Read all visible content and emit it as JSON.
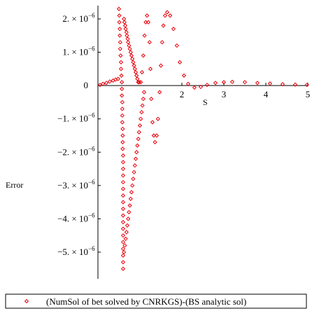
{
  "chart_data": {
    "type": "scatter",
    "title": "",
    "xlabel": "S",
    "ylabel": "Error",
    "xlim": [
      0,
      5
    ],
    "ylim": [
      -5.8e-06,
      2.4e-06
    ],
    "x_ticks": [
      {
        "value": 2,
        "label": "2"
      },
      {
        "value": 3,
        "label": "3"
      },
      {
        "value": 4,
        "label": "4"
      },
      {
        "value": 5,
        "label": "5"
      }
    ],
    "y_ticks": [
      {
        "value": 2e-06,
        "label": "2. × 10",
        "exp": "−6"
      },
      {
        "value": 1e-06,
        "label": "1. × 10",
        "exp": "−6"
      },
      {
        "value": 0,
        "label": "0",
        "exp": ""
      },
      {
        "value": -1e-06,
        "label": "−1. × 10",
        "exp": "−6"
      },
      {
        "value": -2e-06,
        "label": "−2. × 10",
        "exp": "−6"
      },
      {
        "value": -3e-06,
        "label": "−3. × 10",
        "exp": "−6"
      },
      {
        "value": -4e-06,
        "label": "−4. × 10",
        "exp": "−6"
      },
      {
        "value": -5e-06,
        "label": "−5. × 10",
        "exp": "−6"
      }
    ],
    "series": [
      {
        "name": "(NumSol of bet solved by CNRKGS)-(BS analytic sol)",
        "color": "#e8000b",
        "marker": "diamond-open",
        "points": [
          [
            0.05,
            2e-08
          ],
          [
            0.12,
            5e-08
          ],
          [
            0.2,
            8e-08
          ],
          [
            0.28,
            1.2e-07
          ],
          [
            0.36,
            1.5e-07
          ],
          [
            0.42,
            1.8e-07
          ],
          [
            0.48,
            2e-07
          ],
          [
            0.5,
            2.3e-06
          ],
          [
            0.51,
            2.1e-06
          ],
          [
            0.51,
            1.9e-06
          ],
          [
            0.52,
            1.7e-06
          ],
          [
            0.52,
            1.5e-06
          ],
          [
            0.53,
            1.3e-06
          ],
          [
            0.53,
            1.1e-06
          ],
          [
            0.54,
            9e-07
          ],
          [
            0.55,
            7e-07
          ],
          [
            0.55,
            5e-07
          ],
          [
            0.56,
            3e-07
          ],
          [
            0.57,
            1e-07
          ],
          [
            0.57,
            -1e-07
          ],
          [
            0.57,
            -3e-07
          ],
          [
            0.58,
            -5e-07
          ],
          [
            0.58,
            -7e-07
          ],
          [
            0.58,
            -9e-07
          ],
          [
            0.58,
            -1.1e-06
          ],
          [
            0.59,
            -1.3e-06
          ],
          [
            0.59,
            -1.5e-06
          ],
          [
            0.59,
            -1.7e-06
          ],
          [
            0.59,
            -1.9e-06
          ],
          [
            0.6,
            -2.1e-06
          ],
          [
            0.6,
            -2.3e-06
          ],
          [
            0.6,
            -2.5e-06
          ],
          [
            0.6,
            -2.7e-06
          ],
          [
            0.6,
            -2.9e-06
          ],
          [
            0.6,
            -3.1e-06
          ],
          [
            0.6,
            -3.3e-06
          ],
          [
            0.6,
            -3.5e-06
          ],
          [
            0.6,
            -3.7e-06
          ],
          [
            0.6,
            -3.9e-06
          ],
          [
            0.6,
            -4.1e-06
          ],
          [
            0.6,
            -4.3e-06
          ],
          [
            0.6,
            -4.5e-06
          ],
          [
            0.6,
            -4.7e-06
          ],
          [
            0.6,
            -4.9e-06
          ],
          [
            0.6,
            -5.1e-06
          ],
          [
            0.6,
            -5.3e-06
          ],
          [
            0.6,
            -5.5e-06
          ],
          [
            0.62,
            2e-06
          ],
          [
            0.63,
            1.9e-06
          ],
          [
            0.65,
            1.8e-06
          ],
          [
            0.66,
            1.7e-06
          ],
          [
            0.68,
            1.6e-06
          ],
          [
            0.69,
            1.5e-06
          ],
          [
            0.71,
            1.4e-06
          ],
          [
            0.72,
            1.3e-06
          ],
          [
            0.74,
            1.2e-06
          ],
          [
            0.76,
            1.1e-06
          ],
          [
            0.78,
            1e-06
          ],
          [
            0.8,
            9e-07
          ],
          [
            0.82,
            8e-07
          ],
          [
            0.84,
            7e-07
          ],
          [
            0.86,
            6e-07
          ],
          [
            0.88,
            5e-07
          ],
          [
            0.9,
            4e-07
          ],
          [
            0.92,
            3e-07
          ],
          [
            0.94,
            2e-07
          ],
          [
            0.96,
            1e-07
          ],
          [
            0.62,
            -5e-06
          ],
          [
            0.64,
            -4.8e-06
          ],
          [
            0.66,
            -4.6e-06
          ],
          [
            0.68,
            -4.4e-06
          ],
          [
            0.7,
            -4.2e-06
          ],
          [
            0.72,
            -4e-06
          ],
          [
            0.74,
            -3.8e-06
          ],
          [
            0.76,
            -3.6e-06
          ],
          [
            0.78,
            -3.4e-06
          ],
          [
            0.8,
            -3.2e-06
          ],
          [
            0.82,
            -3e-06
          ],
          [
            0.84,
            -2.8e-06
          ],
          [
            0.86,
            -2.6e-06
          ],
          [
            0.88,
            -2.4e-06
          ],
          [
            0.9,
            -2.2e-06
          ],
          [
            0.92,
            -2e-06
          ],
          [
            0.94,
            -1.8e-06
          ],
          [
            0.96,
            -1.6e-06
          ],
          [
            0.98,
            -1.4e-06
          ],
          [
            1.0,
            -1.2e-06
          ],
          [
            1.02,
            -1e-06
          ],
          [
            1.04,
            -8e-07
          ],
          [
            1.06,
            -6e-07
          ],
          [
            1.08,
            -4e-07
          ],
          [
            1.1,
            -2e-07
          ],
          [
            0.98,
            1e-07
          ],
          [
            1.02,
            1e-07
          ],
          [
            1.05,
            4e-07
          ],
          [
            1.08,
            9e-07
          ],
          [
            1.11,
            1.5e-06
          ],
          [
            1.14,
            1.9e-06
          ],
          [
            1.17,
            2.1e-06
          ],
          [
            1.2,
            1.9e-06
          ],
          [
            1.23,
            1.3e-06
          ],
          [
            1.25,
            5e-07
          ],
          [
            1.27,
            -4e-07
          ],
          [
            1.3,
            -1.1e-06
          ],
          [
            1.33,
            -1.5e-06
          ],
          [
            1.36,
            -1.7e-06
          ],
          [
            1.4,
            -1.5e-06
          ],
          [
            1.43,
            -1e-06
          ],
          [
            1.47,
            -2e-07
          ],
          [
            1.5,
            6e-07
          ],
          [
            1.53,
            1.3e-06
          ],
          [
            1.56,
            1.8e-06
          ],
          [
            1.6,
            2.1e-06
          ],
          [
            1.65,
            2.2e-06
          ],
          [
            1.72,
            2.1e-06
          ],
          [
            1.8,
            1.7e-06
          ],
          [
            1.88,
            1.2e-06
          ],
          [
            1.95,
            7e-07
          ],
          [
            2.05,
            3e-07
          ],
          [
            2.15,
            5e-08
          ],
          [
            2.3,
            -6e-08
          ],
          [
            2.45,
            -4e-08
          ],
          [
            2.6,
            2e-08
          ],
          [
            2.8,
            8e-08
          ],
          [
            3.0,
            1e-07
          ],
          [
            3.2,
            1.1e-07
          ],
          [
            3.5,
            1e-07
          ],
          [
            3.8,
            8e-08
          ],
          [
            4.1,
            6e-08
          ],
          [
            4.4,
            4e-08
          ],
          [
            4.7,
            3e-08
          ],
          [
            4.98,
            2e-08
          ]
        ]
      }
    ],
    "grid": false,
    "legend": "bottom"
  }
}
